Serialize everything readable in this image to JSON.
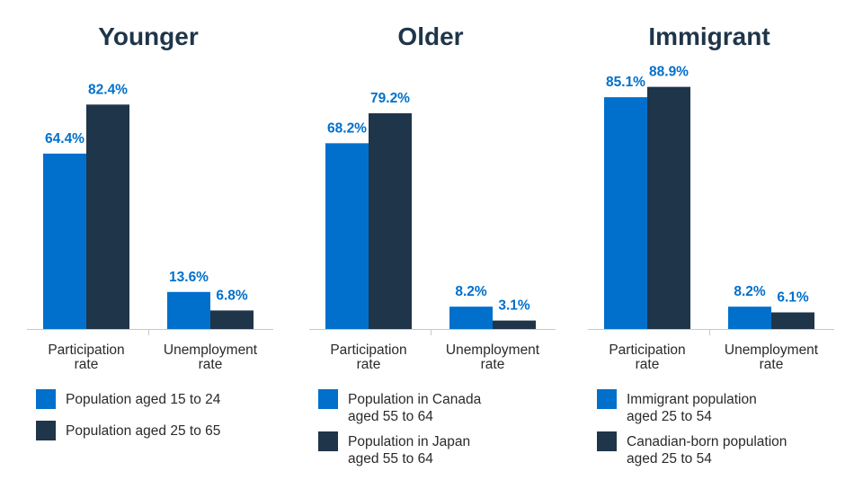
{
  "colors": {
    "series1": "#0070CC",
    "series2": "#1F3549",
    "label": "#0070CC",
    "title": "#1F3549",
    "text": "#2A2A2A",
    "axis": "#C8C8C8"
  },
  "chart_data": [
    {
      "type": "bar",
      "title": "Younger",
      "categories": [
        "Participation rate",
        "Unemployment rate"
      ],
      "category_lines": [
        [
          "Participation",
          "rate"
        ],
        [
          "Unemployment",
          "rate"
        ]
      ],
      "series": [
        {
          "name": "Population aged 15 to 24",
          "legend_lines": [
            "Population aged 15 to 24"
          ],
          "values": [
            64.4,
            13.6
          ],
          "labels": [
            "64.4%",
            "13.6%"
          ]
        },
        {
          "name": "Population aged 25 to 65",
          "legend_lines": [
            "Population aged 25 to 65"
          ],
          "values": [
            82.4,
            6.8
          ],
          "labels": [
            "82.4%",
            "6.8%"
          ]
        }
      ],
      "ylim": [
        0,
        100
      ],
      "grid": false,
      "legend_placement": "bottom"
    },
    {
      "type": "bar",
      "title": "Older",
      "categories": [
        "Participation rate",
        "Unemployment rate"
      ],
      "category_lines": [
        [
          "Participation",
          "rate"
        ],
        [
          "Unemployment",
          "rate"
        ]
      ],
      "series": [
        {
          "name": "Population in Canada aged 55 to 64",
          "legend_lines": [
            "Population in Canada",
            "aged 55 to 64"
          ],
          "values": [
            68.2,
            8.2
          ],
          "labels": [
            "68.2%",
            "8.2%"
          ]
        },
        {
          "name": "Population in Japan aged 55 to 64",
          "legend_lines": [
            "Population in Japan",
            "aged 55 to 64"
          ],
          "values": [
            79.2,
            3.1
          ],
          "labels": [
            "79.2%",
            "3.1%"
          ]
        }
      ],
      "ylim": [
        0,
        100
      ],
      "grid": false,
      "legend_placement": "bottom"
    },
    {
      "type": "bar",
      "title": "Immigrant",
      "categories": [
        "Participation rate",
        "Unemployment rate"
      ],
      "category_lines": [
        [
          "Participation",
          "rate"
        ],
        [
          "Unemployment",
          "rate"
        ]
      ],
      "series": [
        {
          "name": "Immigrant population aged 25 to 54",
          "legend_lines": [
            "Immigrant population",
            "aged 25 to 54"
          ],
          "values": [
            85.1,
            8.2
          ],
          "labels": [
            "85.1%",
            "8.2%"
          ]
        },
        {
          "name": "Canadian-born population aged 25 to 54",
          "legend_lines": [
            "Canadian-born population",
            "aged 25 to 54"
          ],
          "values": [
            88.9,
            6.1
          ],
          "labels": [
            "88.9%",
            "6.1%"
          ]
        }
      ],
      "ylim": [
        0,
        100
      ],
      "grid": false,
      "legend_placement": "bottom"
    }
  ]
}
